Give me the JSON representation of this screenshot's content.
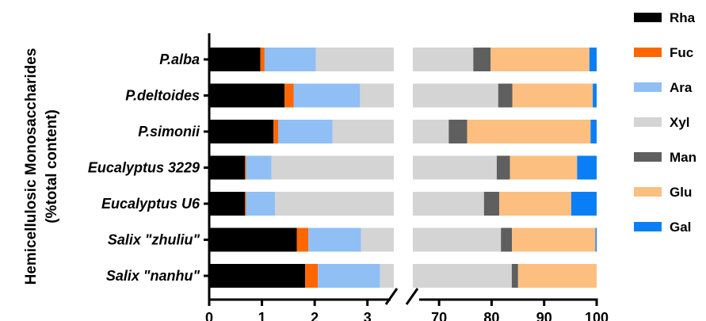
{
  "chart_data": {
    "type": "bar",
    "orientation": "horizontal",
    "stacked": true,
    "broken_x_axis": true,
    "title": "",
    "xlabel": "",
    "ylabel": [
      "Hemicellulosic Monosaccharides",
      "(%total content)"
    ],
    "x_segments": [
      {
        "range": [
          0,
          3.5
        ],
        "ticks": [
          0,
          1,
          2,
          3
        ]
      },
      {
        "range": [
          65,
          100
        ],
        "ticks": [
          70,
          80,
          90,
          100
        ]
      }
    ],
    "grid": false,
    "legend_position": "right",
    "categories": [
      "P.alba",
      "P.deltoides",
      "P.simonii",
      "Eucalyptus 3229",
      "Eucalyptus U6",
      "Salix \"zhuliu\"",
      "Salix \"nanhu\""
    ],
    "series": [
      {
        "name": "Rha",
        "color": "#000000",
        "values": [
          0.97,
          1.43,
          1.22,
          0.68,
          0.68,
          1.66,
          1.82
        ]
      },
      {
        "name": "Fuc",
        "color": "#ff6600",
        "values": [
          0.08,
          0.17,
          0.09,
          0.02,
          0.02,
          0.22,
          0.24
        ]
      },
      {
        "name": "Ara",
        "color": "#8fbff5",
        "values": [
          0.97,
          1.26,
          1.03,
          0.48,
          0.55,
          1.0,
          1.18
        ]
      },
      {
        "name": "Xyl",
        "color": "#d4d4d4",
        "values": [
          74.5,
          78.4,
          69.5,
          79.8,
          77.3,
          78.9,
          80.6
        ]
      },
      {
        "name": "Man",
        "color": "#5f5f5f",
        "values": [
          3.3,
          2.7,
          3.5,
          2.5,
          2.9,
          2.1,
          1.2
        ]
      },
      {
        "name": "Glu",
        "color": "#fcbf80",
        "values": [
          18.8,
          15.3,
          23.5,
          12.8,
          13.7,
          15.9,
          15.5
        ]
      },
      {
        "name": "Gal",
        "color": "#0a7ff5",
        "values": [
          3.6,
          3.7,
          3.6,
          4.9,
          5.8,
          3.3,
          3.0
        ]
      }
    ]
  }
}
